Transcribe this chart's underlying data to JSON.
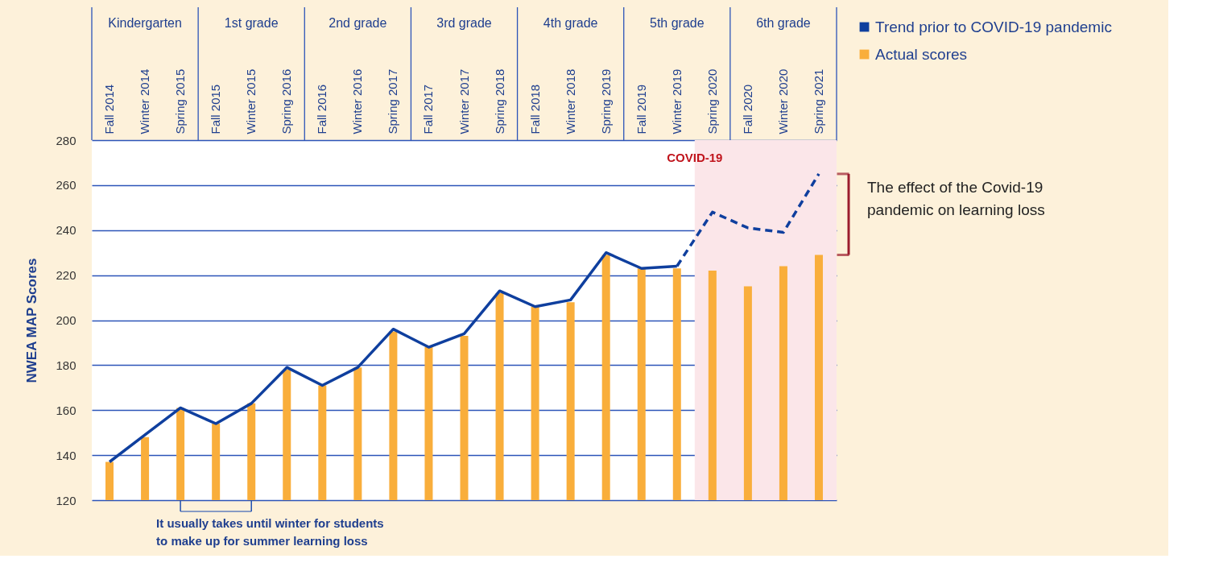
{
  "chart_data": {
    "type": "bar",
    "ylabel": "NWEA MAP Scores",
    "categories": [
      "Fall 2014",
      "Winter 2014",
      "Spring 2015",
      "Fall 2015",
      "Winter 2015",
      "Spring 2016",
      "Fall 2016",
      "Winter 2016",
      "Spring 2017",
      "Fall 2017",
      "Winter 2017",
      "Spring 2018",
      "Fall 2018",
      "Winter 2018",
      "Spring 2019",
      "Fall 2019",
      "Winter 2019",
      "Spring 2020",
      "Fall 2020",
      "Winter 2020",
      "Spring 2021"
    ],
    "series": [
      {
        "name": "Trend prior to COVID-19 pandemic",
        "type": "line",
        "color": "#0f3f9e",
        "values": [
          137,
          149,
          161,
          154,
          163,
          179,
          171,
          179,
          196,
          188,
          194,
          213,
          206,
          209,
          230,
          223,
          224,
          null,
          null,
          null,
          null
        ]
      },
      {
        "type": "line",
        "line_style": "dashed",
        "color": "#0f3f9e",
        "values": [
          null,
          null,
          null,
          null,
          null,
          null,
          null,
          null,
          null,
          null,
          null,
          null,
          null,
          null,
          null,
          null,
          224,
          248,
          241,
          239,
          265
        ]
      },
      {
        "name": "Actual scores",
        "color": "#f9ae3b",
        "values": [
          137,
          148,
          161,
          154,
          163,
          178,
          171,
          179,
          195,
          188,
          193,
          212,
          206,
          208,
          229,
          223,
          223,
          222,
          215,
          224,
          229
        ]
      }
    ],
    "ylim": [
      120,
      280
    ],
    "yticks": [
      120,
      140,
      160,
      180,
      200,
      220,
      240,
      260,
      280
    ],
    "grid": "y",
    "legend": "top right",
    "bands": [
      {
        "axis": "x",
        "from": "Spring 2020",
        "to": "Spring 2021",
        "label": "COVID-19",
        "color": "#fbe6e9"
      }
    ],
    "annotations": [
      "Kindergarten",
      "1st grade",
      "2nd grade",
      "3rd grade",
      "4th grade",
      "5th grade",
      "6th grade",
      {
        "text": "It usually takes until winter for students to make up for summer learning loss",
        "x": "Spring 2015",
        "y": 120
      },
      "The effect of the Covid-19 pandemic on learning loss"
    ]
  }
}
